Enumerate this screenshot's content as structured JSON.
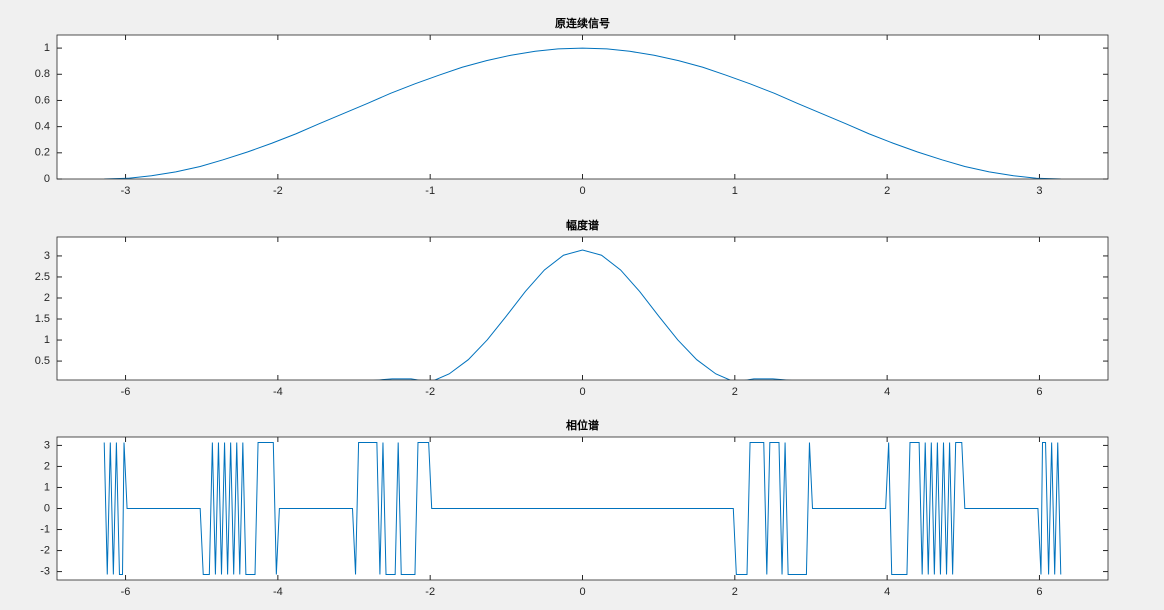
{
  "chart_data": [
    {
      "type": "line",
      "title": "原连续信号",
      "color": "#0072bd",
      "x": [
        -3.14,
        -2.98,
        -2.83,
        -2.67,
        -2.51,
        -2.36,
        -2.2,
        -2.04,
        -1.88,
        -1.73,
        -1.57,
        -1.41,
        -1.26,
        -1.1,
        -0.94,
        -0.79,
        -0.63,
        -0.47,
        -0.31,
        -0.16,
        0,
        0.16,
        0.31,
        0.47,
        0.63,
        0.79,
        0.94,
        1.1,
        1.26,
        1.41,
        1.57,
        1.73,
        1.88,
        2.04,
        2.2,
        2.36,
        2.51,
        2.67,
        2.83,
        2.98,
        3.14
      ],
      "values": [
        0,
        0.0062,
        0.0245,
        0.0545,
        0.0955,
        0.1464,
        0.2061,
        0.273,
        0.3455,
        0.4218,
        0.5,
        0.5782,
        0.6545,
        0.727,
        0.7939,
        0.8536,
        0.9045,
        0.9455,
        0.9755,
        0.9938,
        1,
        0.9938,
        0.9755,
        0.9455,
        0.9045,
        0.8536,
        0.7939,
        0.727,
        0.6545,
        0.5782,
        0.5,
        0.4218,
        0.3455,
        0.273,
        0.2061,
        0.1464,
        0.0955,
        0.0545,
        0.0245,
        0.0062,
        0
      ],
      "xlim": [
        -3.45,
        3.45
      ],
      "ylim": [
        0,
        1.1
      ],
      "xticks": [
        -3,
        -2,
        -1,
        0,
        1,
        2,
        3
      ],
      "yticks": [
        0,
        0.2,
        0.4,
        0.6,
        0.8,
        1
      ]
    },
    {
      "type": "line",
      "title": "幅度谱",
      "color": "#0072bd",
      "x": [
        -6.25,
        -6,
        -5.75,
        -5.5,
        -5.25,
        -5,
        -4.75,
        -4.5,
        -4.25,
        -4,
        -3.75,
        -3.5,
        -3.25,
        -3,
        -2.75,
        -2.5,
        -2.25,
        -2,
        -1.75,
        -1.5,
        -1.25,
        -1,
        -0.75,
        -0.5,
        -0.25,
        0,
        0.25,
        0.5,
        0.75,
        1,
        1.25,
        1.5,
        1.75,
        2,
        2.25,
        2.5,
        2.75,
        3,
        3.25,
        3.5,
        3.75,
        4,
        4.25,
        4.5,
        4.75,
        5,
        5.25,
        5.5,
        5.75,
        6,
        6.25
      ],
      "values": [
        0.003,
        0,
        0.0038,
        0.0062,
        0.0051,
        0,
        0.0069,
        0.0115,
        0.0098,
        0,
        0.0144,
        0.0254,
        0.0228,
        0,
        0.0392,
        0.0762,
        0.0774,
        0,
        0.196,
        0.533,
        1.006,
        1.571,
        2.155,
        2.667,
        3.017,
        3.1416,
        3.017,
        2.667,
        2.155,
        1.571,
        1.006,
        0.533,
        0.196,
        0,
        0.0774,
        0.0762,
        0.0392,
        0,
        0.0228,
        0.0254,
        0.0144,
        0,
        0.0098,
        0.0115,
        0.0069,
        0,
        0.0051,
        0.0062,
        0.0038,
        0,
        0.003
      ],
      "xlim": [
        -6.9,
        6.9
      ],
      "ylim": [
        0.05,
        3.45
      ],
      "xticks": [
        -6,
        -4,
        -2,
        0,
        2,
        4,
        6
      ],
      "yticks": [
        0.5,
        1,
        1.5,
        2,
        2.5,
        3
      ]
    },
    {
      "type": "line",
      "title": "相位谱",
      "color": "#0072bd",
      "x": [
        -6.28,
        -6.24,
        -6.2,
        -6.16,
        -6.12,
        -6.08,
        -6.04,
        -6.02,
        -5.98,
        -5.02,
        -4.98,
        -4.9,
        -4.86,
        -4.82,
        -4.78,
        -4.74,
        -4.7,
        -4.66,
        -4.62,
        -4.58,
        -4.54,
        -4.5,
        -4.46,
        -4.42,
        -4.3,
        -4.26,
        -4.06,
        -4.02,
        -3.98,
        -3.02,
        -2.98,
        -2.94,
        -2.7,
        -2.66,
        -2.62,
        -2.58,
        -2.46,
        -2.42,
        -2.38,
        -2.2,
        -2.16,
        -2.02,
        -1.98,
        1.98,
        2.02,
        2.16,
        2.2,
        2.38,
        2.42,
        2.46,
        2.58,
        2.62,
        2.66,
        2.7,
        2.94,
        2.98,
        3.02,
        3.98,
        4.02,
        4.06,
        4.26,
        4.3,
        4.42,
        4.46,
        4.5,
        4.54,
        4.58,
        4.62,
        4.66,
        4.7,
        4.74,
        4.78,
        4.82,
        4.86,
        4.9,
        4.98,
        5.02,
        5.98,
        6.02,
        6.04,
        6.08,
        6.12,
        6.16,
        6.2,
        6.24,
        6.28
      ],
      "values": [
        3.14,
        -3.14,
        3.14,
        -3.14,
        3.14,
        -3.14,
        -3.14,
        3.14,
        0,
        0,
        -3.14,
        -3.14,
        3.14,
        -3.14,
        3.14,
        -3.14,
        3.14,
        -3.14,
        3.14,
        -3.14,
        3.14,
        -3.14,
        3.14,
        -3.14,
        -3.14,
        3.14,
        3.14,
        -3.14,
        0,
        0,
        -3.14,
        3.14,
        3.14,
        -3.14,
        3.14,
        -3.14,
        -3.14,
        3.14,
        -3.14,
        -3.14,
        3.14,
        3.14,
        0,
        0,
        -3.14,
        -3.14,
        3.14,
        3.14,
        -3.14,
        3.14,
        3.14,
        -3.14,
        3.14,
        -3.14,
        -3.14,
        3.14,
        0,
        0,
        3.14,
        -3.14,
        -3.14,
        3.14,
        3.14,
        -3.14,
        3.14,
        -3.14,
        3.14,
        -3.14,
        3.14,
        -3.14,
        3.14,
        -3.14,
        3.14,
        -3.14,
        3.14,
        3.14,
        0,
        0,
        -3.14,
        3.14,
        3.14,
        -3.14,
        3.14,
        -3.14,
        3.14,
        -3.14
      ],
      "xlim": [
        -6.9,
        6.9
      ],
      "ylim": [
        -3.4,
        3.4
      ],
      "xticks": [
        -6,
        -4,
        -2,
        0,
        2,
        4,
        6
      ],
      "yticks": [
        -3,
        -2,
        -1,
        0,
        1,
        2,
        3
      ]
    }
  ]
}
